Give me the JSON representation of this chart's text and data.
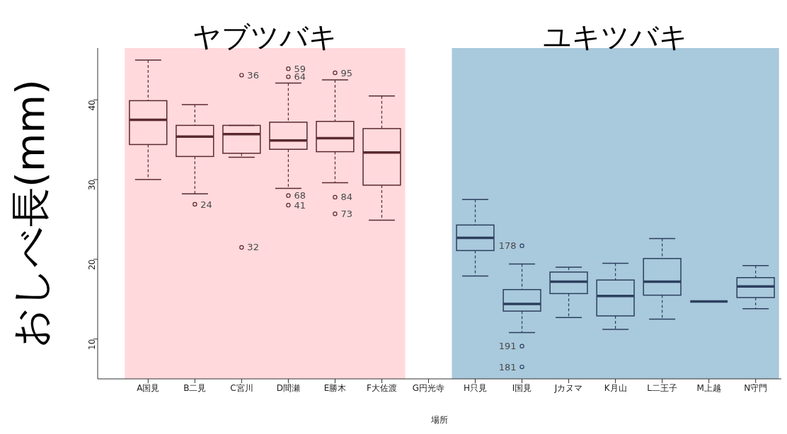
{
  "chart_data": {
    "type": "box",
    "ylabel": "おしべ長(mm)",
    "xlabel": "場所",
    "categories": [
      "A国見",
      "B二見",
      "C宮川",
      "D間瀬",
      "E勝木",
      "F大佐渡",
      "G円光寺",
      "H只見",
      "I国見",
      "Jカヌマ",
      "K月山",
      "L二王子",
      "M上越",
      "N守門"
    ],
    "boxes": [
      {
        "low": 30.0,
        "q1": 34.4,
        "median": 37.5,
        "q3": 39.9,
        "high": 45.0
      },
      {
        "low": 28.2,
        "q1": 32.9,
        "median": 35.4,
        "q3": 36.8,
        "high": 39.4,
        "outliers": [
          26.9
        ]
      },
      {
        "low": 32.8,
        "q1": 33.3,
        "median": 35.7,
        "q3": 36.8,
        "high": 36.8,
        "outliers": [
          43.1,
          21.5
        ]
      },
      {
        "low": 28.9,
        "q1": 33.8,
        "median": 34.9,
        "q3": 37.2,
        "high": 42.1,
        "outliers": [
          43.9,
          42.9,
          28.0,
          26.8
        ]
      },
      {
        "low": 29.6,
        "q1": 33.5,
        "median": 35.2,
        "q3": 37.3,
        "high": 42.5,
        "outliers": [
          43.4,
          27.8,
          25.7
        ]
      },
      {
        "low": 24.9,
        "q1": 29.3,
        "median": 33.4,
        "q3": 36.4,
        "high": 40.5
      },
      null,
      {
        "low": 17.9,
        "q1": 21.1,
        "median": 22.7,
        "q3": 24.3,
        "high": 27.5
      },
      {
        "low": 10.8,
        "q1": 13.5,
        "median": 14.4,
        "q3": 16.2,
        "high": 19.4,
        "outliers": [
          21.7,
          9.1,
          6.5
        ]
      },
      {
        "low": 12.7,
        "q1": 15.7,
        "median": 17.2,
        "q3": 18.4,
        "high": 19.0
      },
      {
        "low": 11.2,
        "q1": 12.9,
        "median": 15.4,
        "q3": 17.4,
        "high": 19.5
      },
      {
        "low": 12.5,
        "q1": 15.5,
        "median": 17.2,
        "q3": 20.1,
        "high": 22.6
      },
      {
        "low": 14.7,
        "q1": 14.7,
        "median": 14.7,
        "q3": 14.7,
        "high": 14.7
      },
      {
        "low": 13.8,
        "q1": 15.2,
        "median": 16.6,
        "q3": 17.7,
        "high": 19.2
      }
    ],
    "colors": [
      "#5a2a2e",
      "#5a2a2e",
      "#5a2a2e",
      "#5a2a2e",
      "#5a2a2e",
      "#5a2a2e",
      null,
      "#2c3f5e",
      "#2c3f5e",
      "#2c3f5e",
      "#2c3f5e",
      "#2c3f5e",
      "#2c3f5e",
      "#2c3f5e"
    ],
    "ylim": [
      5,
      46.5
    ],
    "yticks": [
      10,
      20,
      30,
      40
    ],
    "grid": false,
    "bands": [
      {
        "axis": "x",
        "from": "A国見",
        "to": "F大佐渡",
        "label": "ヤブツバキ",
        "color": "#ffd9dc"
      },
      {
        "axis": "x",
        "from": "H只見",
        "to": "N守門",
        "label": "ユキツバキ",
        "color": "#a9c9dc"
      }
    ],
    "annotations": [
      "24",
      "36",
      "32",
      "59",
      "64",
      "68",
      "41",
      "95",
      "84",
      "73",
      "178",
      "191",
      "181"
    ]
  }
}
